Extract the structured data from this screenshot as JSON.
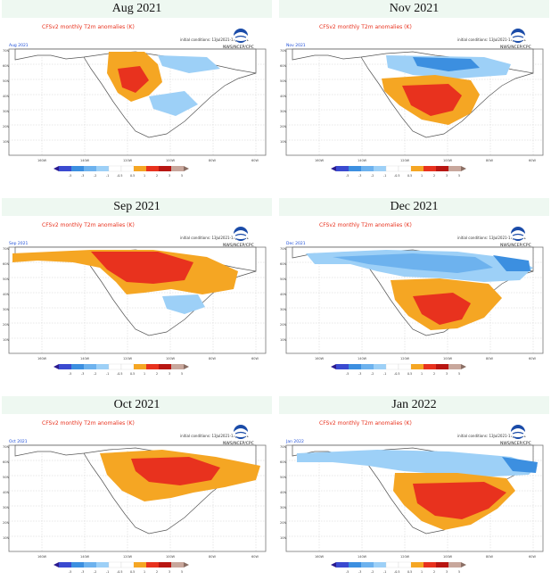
{
  "colors": {
    "ocean": "#ffffff",
    "land": "#ffffff",
    "coast": "#555555",
    "grid": "#c9c9c9",
    "warm1": "#f5a623",
    "warm2": "#e8321e",
    "cool1": "#9dd0f7",
    "cool2": "#3c8fe0",
    "title_red": "#e8321e",
    "month_blue": "#1f4fd8"
  },
  "common": {
    "map_title": "CFSv2 monthly T2m anomalies (K)",
    "agency": "NWS/NCEP/CPC",
    "run_info": "initial conditions: 13Jul2021-17Jul2021",
    "lat_labels": [
      "70N",
      "60N",
      "50N",
      "40N",
      "30N",
      "20N",
      "10N"
    ],
    "lon_labels": [
      "160W",
      "140W",
      "120W",
      "100W",
      "80W",
      "60W"
    ],
    "legend_ticks": [
      "-5",
      "-3",
      "-2",
      "-1",
      "-0.5",
      "0.5",
      "1",
      "2",
      "3",
      "5"
    ],
    "legend_colors": [
      "#2a1a8f",
      "#3a4ad0",
      "#3c8fe0",
      "#6db2ee",
      "#9dd0f7",
      "#ffffff",
      "#ffffff",
      "#f5a623",
      "#e8321e",
      "#b81612",
      "#c8a79c",
      "#8a6e64"
    ]
  },
  "panels": [
    {
      "id": "aug",
      "title": "Aug 2021",
      "tag": "Aug 2021"
    },
    {
      "id": "nov",
      "title": "Nov 2021",
      "tag": "Nov 2021"
    },
    {
      "id": "sep",
      "title": "Sep 2021",
      "tag": "Sep 2021"
    },
    {
      "id": "dec",
      "title": "Dec 2021",
      "tag": "Dec 2021"
    },
    {
      "id": "oct",
      "title": "Oct 2021",
      "tag": "Oct 2021"
    },
    {
      "id": "jan",
      "title": "Jan 2022",
      "tag": "Jan 2022"
    }
  ]
}
